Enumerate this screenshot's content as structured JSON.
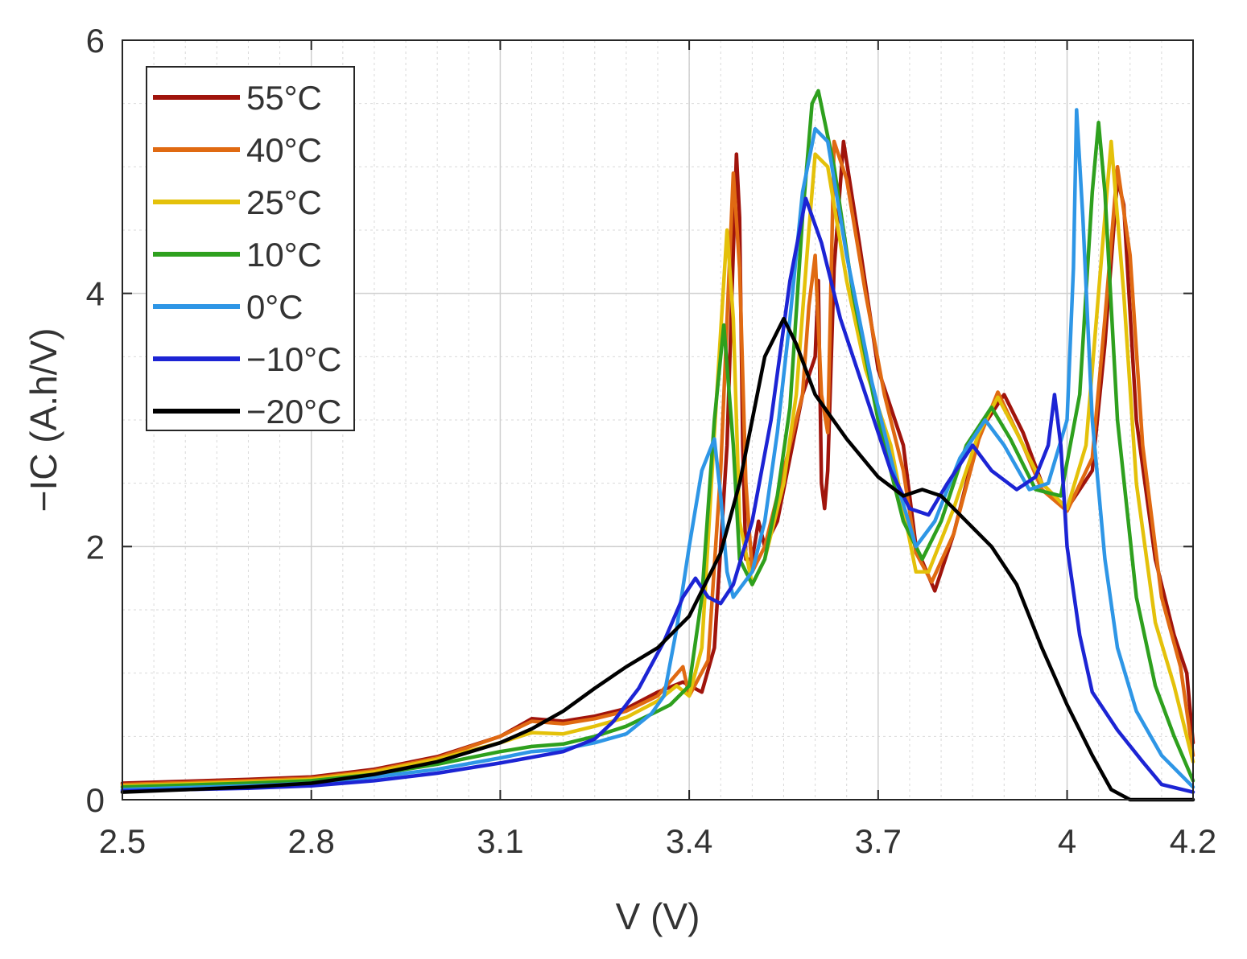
{
  "chart_data": {
    "type": "line",
    "title": "",
    "xlabel": "V (V)",
    "ylabel": "−IC (A.h/V)",
    "xlim": [
      2.5,
      4.2
    ],
    "ylim": [
      0,
      6
    ],
    "xticks": [
      2.5,
      2.8,
      3.1,
      3.4,
      3.7,
      4.0,
      4.2
    ],
    "xtick_labels": [
      "2.5",
      "2.8",
      "3.1",
      "3.4",
      "3.7",
      "4",
      "4.2"
    ],
    "yticks": [
      0,
      2,
      4,
      6
    ],
    "ytick_labels": [
      "0",
      "2",
      "4",
      "6"
    ],
    "grid": true,
    "minor_grid": true,
    "legend_position": "top-left",
    "series": [
      {
        "name": "55°C",
        "color": "#a0140c",
        "points": [
          [
            2.5,
            0.13
          ],
          [
            2.7,
            0.16
          ],
          [
            2.8,
            0.18
          ],
          [
            2.9,
            0.24
          ],
          [
            3.0,
            0.34
          ],
          [
            3.1,
            0.5
          ],
          [
            3.15,
            0.64
          ],
          [
            3.2,
            0.62
          ],
          [
            3.25,
            0.66
          ],
          [
            3.3,
            0.72
          ],
          [
            3.35,
            0.85
          ],
          [
            3.39,
            0.93
          ],
          [
            3.42,
            0.85
          ],
          [
            3.44,
            1.2
          ],
          [
            3.46,
            2.8
          ],
          [
            3.475,
            5.1
          ],
          [
            3.48,
            4.6
          ],
          [
            3.485,
            2.8
          ],
          [
            3.49,
            1.9
          ],
          [
            3.5,
            1.9
          ],
          [
            3.51,
            2.2
          ],
          [
            3.52,
            2.0
          ],
          [
            3.54,
            2.2
          ],
          [
            3.56,
            2.7
          ],
          [
            3.58,
            3.2
          ],
          [
            3.6,
            3.5
          ],
          [
            3.605,
            4.1
          ],
          [
            3.61,
            2.5
          ],
          [
            3.615,
            2.3
          ],
          [
            3.62,
            2.6
          ],
          [
            3.63,
            4.2
          ],
          [
            3.645,
            5.2
          ],
          [
            3.67,
            4.4
          ],
          [
            3.7,
            3.4
          ],
          [
            3.74,
            2.8
          ],
          [
            3.76,
            2.0
          ],
          [
            3.79,
            1.65
          ],
          [
            3.82,
            2.1
          ],
          [
            3.86,
            2.9
          ],
          [
            3.9,
            3.2
          ],
          [
            3.93,
            2.9
          ],
          [
            3.96,
            2.5
          ],
          [
            4.0,
            2.3
          ],
          [
            4.04,
            2.6
          ],
          [
            4.06,
            3.6
          ],
          [
            4.08,
            4.9
          ],
          [
            4.09,
            4.7
          ],
          [
            4.11,
            3.0
          ],
          [
            4.14,
            1.9
          ],
          [
            4.17,
            1.3
          ],
          [
            4.19,
            1.0
          ],
          [
            4.2,
            0.45
          ]
        ]
      },
      {
        "name": "40°C",
        "color": "#e06a12",
        "points": [
          [
            2.5,
            0.12
          ],
          [
            2.7,
            0.15
          ],
          [
            2.8,
            0.17
          ],
          [
            2.9,
            0.23
          ],
          [
            3.0,
            0.33
          ],
          [
            3.1,
            0.5
          ],
          [
            3.15,
            0.62
          ],
          [
            3.2,
            0.6
          ],
          [
            3.25,
            0.64
          ],
          [
            3.3,
            0.7
          ],
          [
            3.35,
            0.82
          ],
          [
            3.39,
            1.05
          ],
          [
            3.4,
            0.82
          ],
          [
            3.43,
            1.1
          ],
          [
            3.45,
            2.6
          ],
          [
            3.47,
            4.95
          ],
          [
            3.48,
            4.2
          ],
          [
            3.49,
            2.5
          ],
          [
            3.5,
            1.8
          ],
          [
            3.52,
            2.0
          ],
          [
            3.55,
            2.6
          ],
          [
            3.58,
            3.2
          ],
          [
            3.59,
            3.9
          ],
          [
            3.6,
            4.3
          ],
          [
            3.61,
            3.2
          ],
          [
            3.62,
            2.9
          ],
          [
            3.63,
            5.2
          ],
          [
            3.65,
            4.9
          ],
          [
            3.68,
            4.0
          ],
          [
            3.71,
            3.2
          ],
          [
            3.74,
            2.6
          ],
          [
            3.76,
            1.95
          ],
          [
            3.785,
            1.72
          ],
          [
            3.82,
            2.1
          ],
          [
            3.86,
            2.85
          ],
          [
            3.89,
            3.22
          ],
          [
            3.93,
            2.8
          ],
          [
            3.96,
            2.45
          ],
          [
            4.0,
            2.28
          ],
          [
            4.04,
            2.7
          ],
          [
            4.06,
            3.8
          ],
          [
            4.08,
            5.0
          ],
          [
            4.1,
            4.3
          ],
          [
            4.12,
            2.8
          ],
          [
            4.15,
            1.6
          ],
          [
            4.18,
            1.05
          ],
          [
            4.2,
            0.35
          ]
        ]
      },
      {
        "name": "25°C",
        "color": "#e4c10a",
        "points": [
          [
            2.5,
            0.11
          ],
          [
            2.7,
            0.14
          ],
          [
            2.8,
            0.16
          ],
          [
            2.9,
            0.22
          ],
          [
            3.0,
            0.32
          ],
          [
            3.1,
            0.45
          ],
          [
            3.15,
            0.53
          ],
          [
            3.2,
            0.52
          ],
          [
            3.25,
            0.58
          ],
          [
            3.3,
            0.65
          ],
          [
            3.35,
            0.78
          ],
          [
            3.38,
            0.9
          ],
          [
            3.4,
            0.82
          ],
          [
            3.42,
            1.2
          ],
          [
            3.44,
            2.9
          ],
          [
            3.46,
            4.5
          ],
          [
            3.47,
            3.8
          ],
          [
            3.48,
            2.2
          ],
          [
            3.5,
            1.7
          ],
          [
            3.52,
            1.9
          ],
          [
            3.55,
            2.5
          ],
          [
            3.57,
            3.2
          ],
          [
            3.59,
            4.5
          ],
          [
            3.6,
            5.1
          ],
          [
            3.62,
            5.0
          ],
          [
            3.65,
            4.1
          ],
          [
            3.68,
            3.4
          ],
          [
            3.72,
            2.8
          ],
          [
            3.76,
            1.8
          ],
          [
            3.78,
            1.8
          ],
          [
            3.82,
            2.3
          ],
          [
            3.86,
            2.9
          ],
          [
            3.89,
            3.18
          ],
          [
            3.92,
            2.9
          ],
          [
            3.96,
            2.5
          ],
          [
            4.0,
            2.3
          ],
          [
            4.03,
            2.8
          ],
          [
            4.05,
            4.0
          ],
          [
            4.07,
            5.2
          ],
          [
            4.09,
            4.0
          ],
          [
            4.11,
            2.5
          ],
          [
            4.14,
            1.4
          ],
          [
            4.17,
            0.9
          ],
          [
            4.2,
            0.3
          ]
        ]
      },
      {
        "name": "10°C",
        "color": "#2ea01e",
        "points": [
          [
            2.5,
            0.1
          ],
          [
            2.7,
            0.13
          ],
          [
            2.8,
            0.15
          ],
          [
            2.9,
            0.2
          ],
          [
            3.0,
            0.28
          ],
          [
            3.1,
            0.38
          ],
          [
            3.15,
            0.42
          ],
          [
            3.2,
            0.44
          ],
          [
            3.25,
            0.5
          ],
          [
            3.3,
            0.58
          ],
          [
            3.35,
            0.7
          ],
          [
            3.37,
            0.75
          ],
          [
            3.38,
            0.8
          ],
          [
            3.4,
            0.9
          ],
          [
            3.42,
            1.6
          ],
          [
            3.44,
            3.0
          ],
          [
            3.455,
            3.75
          ],
          [
            3.47,
            2.8
          ],
          [
            3.48,
            1.9
          ],
          [
            3.5,
            1.7
          ],
          [
            3.52,
            1.9
          ],
          [
            3.54,
            2.4
          ],
          [
            3.56,
            3.1
          ],
          [
            3.58,
            4.6
          ],
          [
            3.595,
            5.5
          ],
          [
            3.605,
            5.6
          ],
          [
            3.63,
            5.0
          ],
          [
            3.66,
            4.0
          ],
          [
            3.7,
            3.0
          ],
          [
            3.74,
            2.2
          ],
          [
            3.77,
            1.9
          ],
          [
            3.8,
            2.2
          ],
          [
            3.84,
            2.8
          ],
          [
            3.88,
            3.1
          ],
          [
            3.91,
            2.85
          ],
          [
            3.95,
            2.45
          ],
          [
            3.99,
            2.4
          ],
          [
            4.02,
            3.2
          ],
          [
            4.04,
            4.8
          ],
          [
            4.05,
            5.35
          ],
          [
            4.06,
            4.8
          ],
          [
            4.08,
            3.0
          ],
          [
            4.11,
            1.6
          ],
          [
            4.14,
            0.9
          ],
          [
            4.17,
            0.5
          ],
          [
            4.2,
            0.15
          ]
        ]
      },
      {
        "name": "0°C",
        "color": "#2e96e6",
        "points": [
          [
            2.5,
            0.08
          ],
          [
            2.7,
            0.11
          ],
          [
            2.8,
            0.13
          ],
          [
            2.9,
            0.18
          ],
          [
            3.0,
            0.24
          ],
          [
            3.1,
            0.33
          ],
          [
            3.15,
            0.38
          ],
          [
            3.2,
            0.4
          ],
          [
            3.25,
            0.45
          ],
          [
            3.3,
            0.52
          ],
          [
            3.34,
            0.68
          ],
          [
            3.36,
            0.82
          ],
          [
            3.38,
            1.35
          ],
          [
            3.4,
            2.0
          ],
          [
            3.42,
            2.6
          ],
          [
            3.44,
            2.85
          ],
          [
            3.45,
            2.4
          ],
          [
            3.46,
            1.8
          ],
          [
            3.47,
            1.6
          ],
          [
            3.5,
            1.8
          ],
          [
            3.52,
            2.2
          ],
          [
            3.54,
            2.9
          ],
          [
            3.56,
            3.8
          ],
          [
            3.58,
            4.8
          ],
          [
            3.6,
            5.3
          ],
          [
            3.62,
            5.2
          ],
          [
            3.65,
            4.3
          ],
          [
            3.69,
            3.3
          ],
          [
            3.73,
            2.5
          ],
          [
            3.76,
            2.0
          ],
          [
            3.79,
            2.2
          ],
          [
            3.83,
            2.7
          ],
          [
            3.87,
            3.0
          ],
          [
            3.9,
            2.8
          ],
          [
            3.94,
            2.45
          ],
          [
            3.97,
            2.5
          ],
          [
            4.0,
            3.0
          ],
          [
            4.01,
            4.2
          ],
          [
            4.015,
            5.45
          ],
          [
            4.025,
            4.6
          ],
          [
            4.04,
            3.0
          ],
          [
            4.06,
            1.9
          ],
          [
            4.08,
            1.2
          ],
          [
            4.11,
            0.7
          ],
          [
            4.15,
            0.35
          ],
          [
            4.2,
            0.1
          ]
        ]
      },
      {
        "name": "−10°C",
        "color": "#1c24d4",
        "points": [
          [
            2.5,
            0.07
          ],
          [
            2.7,
            0.09
          ],
          [
            2.8,
            0.11
          ],
          [
            2.9,
            0.15
          ],
          [
            3.0,
            0.21
          ],
          [
            3.1,
            0.29
          ],
          [
            3.2,
            0.38
          ],
          [
            3.25,
            0.48
          ],
          [
            3.28,
            0.62
          ],
          [
            3.32,
            0.88
          ],
          [
            3.36,
            1.25
          ],
          [
            3.39,
            1.6
          ],
          [
            3.41,
            1.75
          ],
          [
            3.43,
            1.6
          ],
          [
            3.45,
            1.55
          ],
          [
            3.47,
            1.7
          ],
          [
            3.5,
            2.2
          ],
          [
            3.53,
            3.0
          ],
          [
            3.56,
            4.1
          ],
          [
            3.585,
            4.75
          ],
          [
            3.61,
            4.4
          ],
          [
            3.64,
            3.8
          ],
          [
            3.68,
            3.2
          ],
          [
            3.72,
            2.6
          ],
          [
            3.75,
            2.3
          ],
          [
            3.78,
            2.25
          ],
          [
            3.81,
            2.5
          ],
          [
            3.85,
            2.8
          ],
          [
            3.88,
            2.6
          ],
          [
            3.92,
            2.45
          ],
          [
            3.95,
            2.55
          ],
          [
            3.97,
            2.8
          ],
          [
            3.98,
            3.2
          ],
          [
            3.99,
            2.8
          ],
          [
            4.0,
            2.0
          ],
          [
            4.02,
            1.3
          ],
          [
            4.04,
            0.85
          ],
          [
            4.08,
            0.55
          ],
          [
            4.12,
            0.3
          ],
          [
            4.15,
            0.12
          ],
          [
            4.2,
            0.06
          ]
        ]
      },
      {
        "name": "−20°C",
        "color": "#000000",
        "points": [
          [
            2.5,
            0.06
          ],
          [
            2.7,
            0.1
          ],
          [
            2.8,
            0.13
          ],
          [
            2.9,
            0.2
          ],
          [
            3.0,
            0.3
          ],
          [
            3.1,
            0.45
          ],
          [
            3.15,
            0.56
          ],
          [
            3.2,
            0.7
          ],
          [
            3.25,
            0.88
          ],
          [
            3.3,
            1.05
          ],
          [
            3.35,
            1.2
          ],
          [
            3.4,
            1.45
          ],
          [
            3.45,
            1.95
          ],
          [
            3.48,
            2.5
          ],
          [
            3.5,
            3.0
          ],
          [
            3.52,
            3.5
          ],
          [
            3.55,
            3.8
          ],
          [
            3.57,
            3.6
          ],
          [
            3.6,
            3.2
          ],
          [
            3.65,
            2.85
          ],
          [
            3.7,
            2.55
          ],
          [
            3.74,
            2.4
          ],
          [
            3.77,
            2.45
          ],
          [
            3.8,
            2.4
          ],
          [
            3.84,
            2.2
          ],
          [
            3.88,
            2.0
          ],
          [
            3.92,
            1.7
          ],
          [
            3.96,
            1.2
          ],
          [
            4.0,
            0.75
          ],
          [
            4.04,
            0.35
          ],
          [
            4.07,
            0.08
          ],
          [
            4.1,
            0.0
          ],
          [
            4.2,
            0.0
          ]
        ]
      }
    ]
  }
}
